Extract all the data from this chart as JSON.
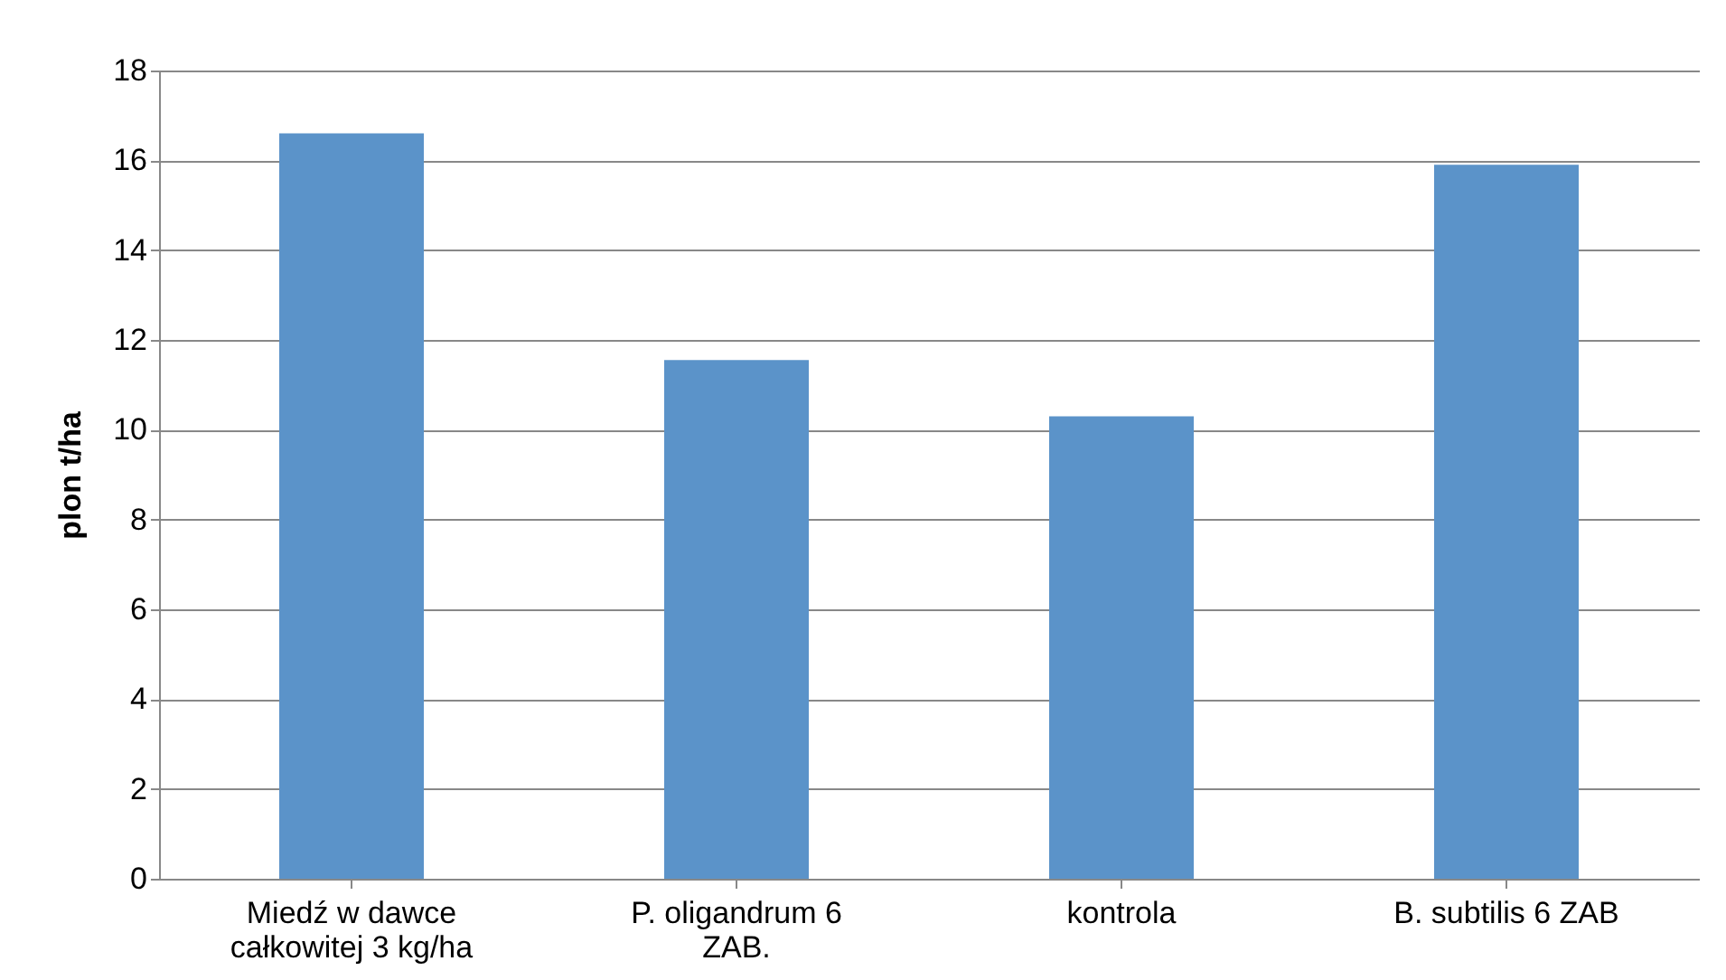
{
  "chart_data": {
    "type": "bar",
    "ylabel": "plon t/ha",
    "categories": [
      "Miedź w dawce\ncałkowitej 3 kg/ha",
      "P. oligandrum  6\nZAB.",
      "kontrola",
      "B. subtilis 6 ZAB"
    ],
    "values": [
      16.6,
      11.55,
      10.3,
      15.9
    ],
    "color": "#5b93c9",
    "ylim": [
      0,
      18
    ],
    "yticks": [
      0,
      2,
      4,
      6,
      8,
      10,
      12,
      14,
      16,
      18
    ],
    "grid": "y"
  }
}
